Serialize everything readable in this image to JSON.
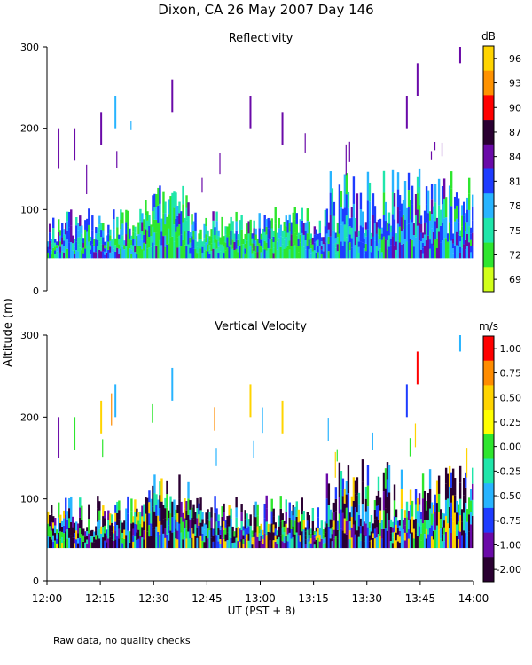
{
  "header": {
    "title": "Dixon, CA 26 May 2007  Day 146",
    "ylabel": "Altitude (m)",
    "xlabel": "UT  (PST + 8)",
    "footnote": "Raw data, no quality checks"
  },
  "chart_data": [
    {
      "type": "heatmap",
      "title": "Reflectivity",
      "ylabel": "Altitude (m)",
      "xlabel": "UT  (PST + 8)",
      "x_ticks": [
        "12:00",
        "12:15",
        "12:30",
        "12:45",
        "13:00",
        "13:15",
        "13:30",
        "13:45",
        "14:00"
      ],
      "xlim_minutes": [
        0,
        120
      ],
      "y_ticks": [
        0,
        100,
        200,
        300
      ],
      "ylim": [
        0,
        300
      ],
      "colorbar": {
        "unit": "dB",
        "ticks": [
          "96",
          "93",
          "90",
          "87",
          "84",
          "81",
          "78",
          "75",
          "72",
          "69"
        ],
        "colors": [
          "#ffd400",
          "#ff9200",
          "#ff0000",
          "#2a0032",
          "#6a0aa8",
          "#1e3cff",
          "#28b4ff",
          "#1fe6aa",
          "#2ee62e",
          "#d2ff1a"
        ]
      }
    },
    {
      "type": "heatmap",
      "title": "Vertical Velocity",
      "ylabel": "Altitude (m)",
      "xlabel": "UT  (PST + 8)",
      "x_ticks": [
        "12:00",
        "12:15",
        "12:30",
        "12:45",
        "13:00",
        "13:15",
        "13:30",
        "13:45",
        "14:00"
      ],
      "xlim_minutes": [
        0,
        120
      ],
      "y_ticks": [
        0,
        100,
        200,
        300
      ],
      "ylim": [
        0,
        300
      ],
      "colorbar": {
        "unit": "m/s",
        "ticks": [
          "1.00",
          "0.75",
          "0.50",
          "0.25",
          "0.00",
          "-0.25",
          "-0.50",
          "-0.75",
          "-1.00",
          "-2.00"
        ],
        "colors": [
          "#ff0000",
          "#ff8c00",
          "#ffd400",
          "#ffff00",
          "#2ee62e",
          "#1fe6aa",
          "#28b4ff",
          "#1e3cff",
          "#6a0aa8",
          "#2a0032"
        ]
      }
    }
  ]
}
